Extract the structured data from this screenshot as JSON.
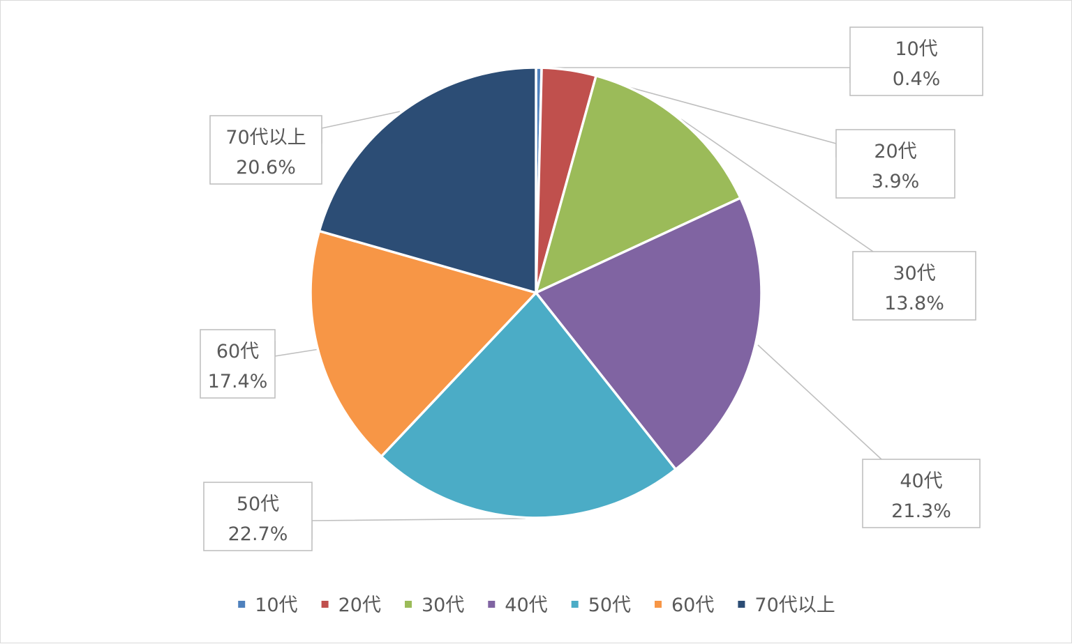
{
  "chart_data": {
    "type": "pie",
    "categories": [
      "10代",
      "20代",
      "30代",
      "40代",
      "50代",
      "60代",
      "70代以上"
    ],
    "values": [
      0.4,
      3.9,
      13.8,
      21.3,
      22.7,
      17.4,
      20.6
    ],
    "value_labels": [
      "0.4%",
      "3.9%",
      "13.8%",
      "21.3%",
      "22.7%",
      "17.4%",
      "20.6%"
    ],
    "unit": "%",
    "colors": [
      "#4f81bd",
      "#c0504d",
      "#9bbb59",
      "#8064a2",
      "#4bacc6",
      "#f79646",
      "#2c4d75"
    ],
    "legend_position": "bottom",
    "title": ""
  }
}
